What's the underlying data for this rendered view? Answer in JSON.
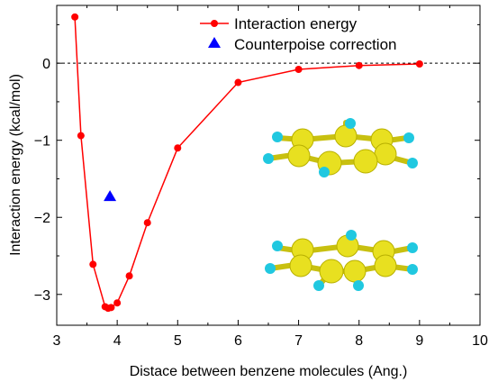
{
  "chart_data": {
    "type": "line",
    "xlabel": "Distace between benzene molecules (Ang.)",
    "ylabel": "Interaction energy (kcal/mol)",
    "xlim": [
      3,
      10
    ],
    "ylim": [
      -3.4,
      0.75
    ],
    "x_ticks": [
      3,
      4,
      5,
      6,
      7,
      8,
      9,
      10
    ],
    "y_ticks": [
      0,
      -1,
      -2,
      -3
    ],
    "x_tick_labels": [
      "3",
      "4",
      "5",
      "6",
      "7",
      "8",
      "9",
      "10"
    ],
    "y_tick_labels": [
      "0",
      "−1",
      "−2",
      "−3"
    ],
    "reference_line": {
      "y": 0,
      "style": "dashed"
    },
    "legend_position": "top-right",
    "series": [
      {
        "name": "Interaction energy",
        "marker": "circle",
        "color": "#ff0000",
        "x": [
          3.3,
          3.4,
          3.6,
          3.8,
          3.85,
          3.9,
          4.0,
          4.2,
          4.5,
          5.0,
          6.0,
          7.0,
          8.0,
          9.0
        ],
        "y": [
          0.6,
          -0.94,
          -2.61,
          -3.16,
          -3.18,
          -3.17,
          -3.11,
          -2.76,
          -2.07,
          -1.1,
          -0.25,
          -0.08,
          -0.03,
          -0.01
        ]
      },
      {
        "name": "Counterpoise correction",
        "marker": "triangle",
        "color": "#0000ff",
        "x": [
          3.88
        ],
        "y": [
          -1.73
        ]
      }
    ],
    "inset": {
      "subject": "benzene dimer",
      "colors": {
        "carbon": "#e8e020",
        "hydrogen": "#20c8e0"
      }
    }
  }
}
